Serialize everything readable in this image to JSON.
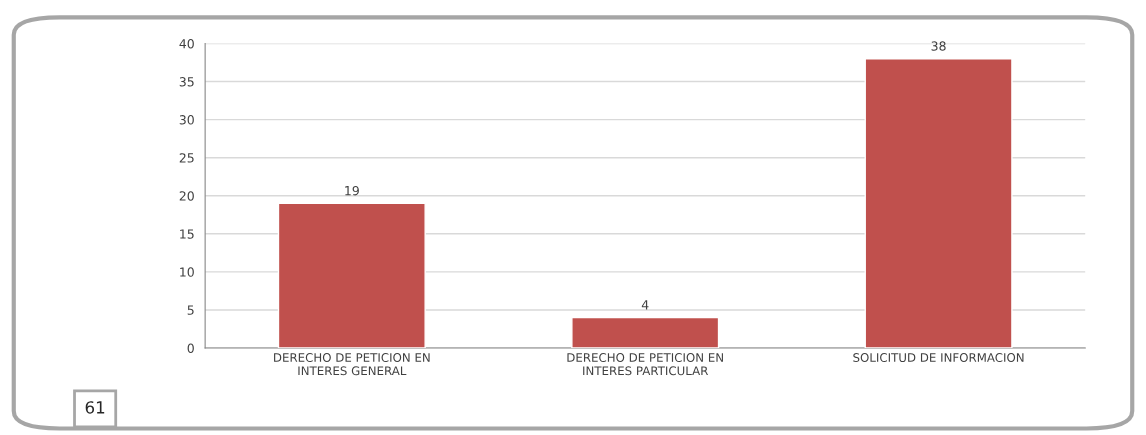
{
  "chart_data": {
    "type": "bar",
    "categories": [
      "DERECHO DE PETICION EN\nINTERES GENERAL",
      "DERECHO DE PETICION EN\nINTERES PARTICULAR",
      "SOLICITUD DE INFORMACION"
    ],
    "values": [
      19,
      4,
      38
    ],
    "color": "#c0504d",
    "ylim": [
      0,
      40
    ],
    "yticks": [
      0,
      5,
      10,
      15,
      20,
      25,
      30,
      35,
      40
    ],
    "grid": "y",
    "data_labels": true,
    "annotations": [
      "61"
    ]
  }
}
